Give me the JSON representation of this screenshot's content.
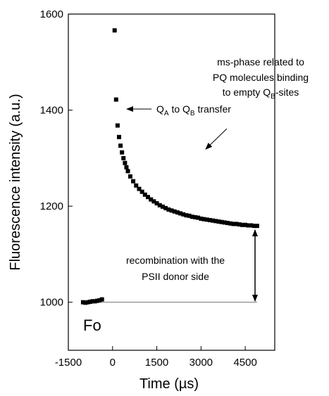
{
  "chart_data": {
    "type": "scatter",
    "xlabel": "Time (µs)",
    "ylabel": "Fluorescence intensity (a.u.)",
    "xlim": [
      -1500,
      5500
    ],
    "ylim": [
      900,
      1600
    ],
    "xticks": [
      -1500,
      0,
      1500,
      3000,
      4500
    ],
    "yticks": [
      1000,
      1200,
      1400,
      1600
    ],
    "color": "#000000",
    "series": [
      {
        "x": [
          -1000,
          -920,
          -840,
          -760,
          -680,
          -600,
          -520,
          -440,
          -360,
          70,
          120,
          170,
          220,
          270,
          320,
          370,
          420,
          470,
          520,
          600,
          700,
          800,
          900,
          1000,
          1100,
          1200,
          1300,
          1400,
          1500,
          1600,
          1700,
          1800,
          1900,
          2000,
          2100,
          2200,
          2300,
          2400,
          2500,
          2600,
          2700,
          2800,
          2900,
          3000,
          3100,
          3200,
          3300,
          3400,
          3500,
          3600,
          3700,
          3800,
          3900,
          4000,
          4100,
          4200,
          4300,
          4400,
          4500,
          4600,
          4700,
          4800,
          4900
        ],
        "values": [
          1000,
          999,
          1000,
          1001,
          1002,
          1002,
          1003,
          1004,
          1006,
          1566,
          1422,
          1368,
          1344,
          1326,
          1312,
          1300,
          1290,
          1281,
          1273,
          1262,
          1252,
          1243,
          1236,
          1230,
          1224,
          1219,
          1214,
          1210,
          1206,
          1202,
          1199,
          1196,
          1193,
          1191,
          1189,
          1187,
          1185,
          1183,
          1181,
          1180,
          1178,
          1177,
          1176,
          1174,
          1173,
          1172,
          1171,
          1170,
          1169,
          1168,
          1167,
          1166,
          1165,
          1164,
          1163,
          1163,
          1162,
          1161,
          1161,
          1160,
          1160,
          1159,
          1159
        ]
      }
    ],
    "reference_line": {
      "x": [
        -1000,
        4900
      ],
      "y": 1000
    },
    "annotations": [
      {
        "parts": [
          {
            "text": "Q"
          },
          {
            "text": "A",
            "sub": true
          },
          {
            "text": " to Q"
          },
          {
            "text": "B",
            "sub": true
          },
          {
            "text": " transfer"
          }
        ]
      },
      {
        "parts": [
          {
            "text": "ms-phase related to"
          }
        ]
      },
      {
        "parts": [
          {
            "text": "PQ molecules binding"
          }
        ]
      },
      {
        "parts": [
          {
            "text": "to empty Q"
          },
          {
            "text": "B",
            "sub": true
          },
          {
            "text": "-sites"
          }
        ]
      },
      {
        "parts": [
          {
            "text": "recombination with the"
          }
        ]
      },
      {
        "parts": [
          {
            "text": "PSII donor side"
          }
        ]
      },
      {
        "parts": [
          {
            "text": "Fo"
          }
        ],
        "big": true
      }
    ]
  }
}
